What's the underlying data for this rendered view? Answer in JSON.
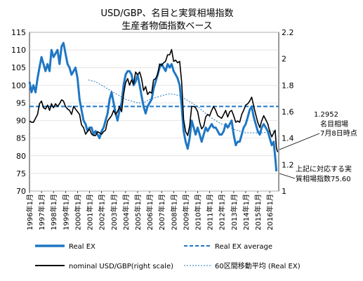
{
  "chart_data": {
    "type": "line",
    "title": "USD/GBP、名目と実質相場指数",
    "subtitle": "生産者物価指数ベース",
    "xlabel": "",
    "ylabel": "",
    "y2label": "",
    "ylim": [
      70,
      115
    ],
    "yticks": [
      "70",
      "75",
      "80",
      "85",
      "90",
      "95",
      "100",
      "105",
      "110",
      "115"
    ],
    "y2lim": [
      1.0,
      2.2
    ],
    "y2ticks": [
      "1",
      "1.2",
      "1.4",
      "1.6",
      "1.8",
      "2",
      "2.2"
    ],
    "xlim": [
      1996.0,
      2016.75
    ],
    "xtick_labels": [
      "1996年1月",
      "1997年1月",
      "1998年1月",
      "1999年1月",
      "2000年1月",
      "2001年1月",
      "2002年1月",
      "2003年1月",
      "2004年1月",
      "2005年1月",
      "2006年1月",
      "2007年1月",
      "2008年1月",
      "2009年1月",
      "2010年1月",
      "2011年1月",
      "2012年1月",
      "2013年1月",
      "2014年1月",
      "2015年1月",
      "2016年1月"
    ],
    "colors": {
      "real": "#1f77c4",
      "nominal": "#000000",
      "average": "#1f77c4",
      "moving": "#1f77c4"
    },
    "series": [
      {
        "name": "Real EX",
        "axis": "left",
        "points": [
          [
            1996.0,
            101
          ],
          [
            1996.17,
            98
          ],
          [
            1996.33,
            100
          ],
          [
            1996.5,
            98
          ],
          [
            1996.67,
            102
          ],
          [
            1996.83,
            105
          ],
          [
            1997.0,
            108
          ],
          [
            1997.17,
            106
          ],
          [
            1997.33,
            104
          ],
          [
            1997.5,
            106
          ],
          [
            1997.67,
            104
          ],
          [
            1997.83,
            110
          ],
          [
            1998.0,
            108
          ],
          [
            1998.17,
            109
          ],
          [
            1998.33,
            110
          ],
          [
            1998.5,
            106
          ],
          [
            1998.67,
            111
          ],
          [
            1998.83,
            112
          ],
          [
            1999.0,
            109
          ],
          [
            1999.17,
            106
          ],
          [
            1999.33,
            105
          ],
          [
            1999.5,
            103
          ],
          [
            1999.67,
            104
          ],
          [
            1999.83,
            105
          ],
          [
            2000.0,
            102
          ],
          [
            2000.17,
            96
          ],
          [
            2000.33,
            93
          ],
          [
            2000.5,
            90
          ],
          [
            2000.67,
            89
          ],
          [
            2000.83,
            87
          ],
          [
            2001.0,
            88
          ],
          [
            2001.17,
            88
          ],
          [
            2001.33,
            86
          ],
          [
            2001.5,
            87
          ],
          [
            2001.67,
            86
          ],
          [
            2001.83,
            85
          ],
          [
            2002.0,
            87
          ],
          [
            2002.17,
            88
          ],
          [
            2002.33,
            90
          ],
          [
            2002.5,
            92
          ],
          [
            2002.67,
            96
          ],
          [
            2002.83,
            98
          ],
          [
            2003.0,
            95
          ],
          [
            2003.17,
            92
          ],
          [
            2003.33,
            90
          ],
          [
            2003.5,
            93
          ],
          [
            2003.67,
            95
          ],
          [
            2003.83,
            100
          ],
          [
            2004.0,
            103
          ],
          [
            2004.17,
            104
          ],
          [
            2004.33,
            104
          ],
          [
            2004.5,
            103
          ],
          [
            2004.67,
            100
          ],
          [
            2004.83,
            101
          ],
          [
            2005.0,
            103
          ],
          [
            2005.17,
            100
          ],
          [
            2005.33,
            97
          ],
          [
            2005.5,
            94
          ],
          [
            2005.67,
            92
          ],
          [
            2005.83,
            94
          ],
          [
            2006.0,
            95
          ],
          [
            2006.17,
            96
          ],
          [
            2006.33,
            99
          ],
          [
            2006.5,
            101
          ],
          [
            2006.67,
            103
          ],
          [
            2006.83,
            105
          ],
          [
            2007.0,
            106
          ],
          [
            2007.17,
            105
          ],
          [
            2007.33,
            104
          ],
          [
            2007.5,
            106
          ],
          [
            2007.67,
            105
          ],
          [
            2007.83,
            106
          ],
          [
            2008.0,
            104
          ],
          [
            2008.17,
            103
          ],
          [
            2008.33,
            102
          ],
          [
            2008.5,
            100
          ],
          [
            2008.67,
            94
          ],
          [
            2008.83,
            87
          ],
          [
            2009.0,
            84
          ],
          [
            2009.17,
            82
          ],
          [
            2009.33,
            85
          ],
          [
            2009.5,
            90
          ],
          [
            2009.67,
            88
          ],
          [
            2009.83,
            86
          ],
          [
            2010.0,
            88
          ],
          [
            2010.17,
            86
          ],
          [
            2010.33,
            84
          ],
          [
            2010.5,
            86
          ],
          [
            2010.67,
            88
          ],
          [
            2010.83,
            87
          ],
          [
            2011.0,
            88
          ],
          [
            2011.17,
            89
          ],
          [
            2011.33,
            88
          ],
          [
            2011.5,
            88
          ],
          [
            2011.67,
            87
          ],
          [
            2011.83,
            86
          ],
          [
            2012.0,
            86
          ],
          [
            2012.17,
            87
          ],
          [
            2012.33,
            89
          ],
          [
            2012.5,
            88
          ],
          [
            2012.67,
            89
          ],
          [
            2012.83,
            90
          ],
          [
            2013.0,
            86
          ],
          [
            2013.17,
            83
          ],
          [
            2013.33,
            84
          ],
          [
            2013.5,
            84
          ],
          [
            2013.67,
            86
          ],
          [
            2013.83,
            88
          ],
          [
            2014.0,
            89
          ],
          [
            2014.17,
            91
          ],
          [
            2014.33,
            93
          ],
          [
            2014.5,
            94
          ],
          [
            2014.67,
            91
          ],
          [
            2014.83,
            89
          ],
          [
            2015.0,
            87
          ],
          [
            2015.17,
            86
          ],
          [
            2015.33,
            88
          ],
          [
            2015.5,
            89
          ],
          [
            2015.67,
            88
          ],
          [
            2015.83,
            87
          ],
          [
            2016.0,
            85
          ],
          [
            2016.17,
            83
          ],
          [
            2016.33,
            84
          ],
          [
            2016.5,
            78
          ],
          [
            2016.55,
            75.6
          ]
        ]
      },
      {
        "name": "Real EX average",
        "axis": "left",
        "constant": 94
      },
      {
        "name": "nominal USD/GBP(right scale)",
        "axis": "right",
        "points": [
          [
            1996.0,
            1.53
          ],
          [
            1996.17,
            1.52
          ],
          [
            1996.33,
            1.52
          ],
          [
            1996.5,
            1.55
          ],
          [
            1996.67,
            1.58
          ],
          [
            1996.83,
            1.66
          ],
          [
            1997.0,
            1.68
          ],
          [
            1997.17,
            1.63
          ],
          [
            1997.33,
            1.62
          ],
          [
            1997.5,
            1.65
          ],
          [
            1997.67,
            1.61
          ],
          [
            1997.83,
            1.66
          ],
          [
            1998.0,
            1.63
          ],
          [
            1998.17,
            1.66
          ],
          [
            1998.33,
            1.64
          ],
          [
            1998.5,
            1.66
          ],
          [
            1998.67,
            1.69
          ],
          [
            1998.83,
            1.68
          ],
          [
            1999.0,
            1.64
          ],
          [
            1999.17,
            1.62
          ],
          [
            1999.33,
            1.61
          ],
          [
            1999.5,
            1.58
          ],
          [
            1999.67,
            1.64
          ],
          [
            1999.83,
            1.62
          ],
          [
            2000.0,
            1.6
          ],
          [
            2000.17,
            1.58
          ],
          [
            2000.33,
            1.5
          ],
          [
            2000.5,
            1.48
          ],
          [
            2000.67,
            1.43
          ],
          [
            2000.83,
            1.45
          ],
          [
            2001.0,
            1.47
          ],
          [
            2001.17,
            1.43
          ],
          [
            2001.33,
            1.42
          ],
          [
            2001.5,
            1.42
          ],
          [
            2001.67,
            1.45
          ],
          [
            2001.83,
            1.44
          ],
          [
            2002.0,
            1.43
          ],
          [
            2002.17,
            1.45
          ],
          [
            2002.33,
            1.46
          ],
          [
            2002.5,
            1.53
          ],
          [
            2002.67,
            1.55
          ],
          [
            2002.83,
            1.57
          ],
          [
            2003.0,
            1.61
          ],
          [
            2003.17,
            1.58
          ],
          [
            2003.33,
            1.6
          ],
          [
            2003.5,
            1.64
          ],
          [
            2003.67,
            1.6
          ],
          [
            2003.83,
            1.73
          ],
          [
            2004.0,
            1.82
          ],
          [
            2004.17,
            1.85
          ],
          [
            2004.33,
            1.8
          ],
          [
            2004.5,
            1.84
          ],
          [
            2004.67,
            1.81
          ],
          [
            2004.83,
            1.9
          ],
          [
            2005.0,
            1.88
          ],
          [
            2005.17,
            1.9
          ],
          [
            2005.33,
            1.85
          ],
          [
            2005.5,
            1.76
          ],
          [
            2005.67,
            1.79
          ],
          [
            2005.83,
            1.73
          ],
          [
            2006.0,
            1.75
          ],
          [
            2006.17,
            1.74
          ],
          [
            2006.33,
            1.84
          ],
          [
            2006.5,
            1.85
          ],
          [
            2006.67,
            1.88
          ],
          [
            2006.83,
            1.96
          ],
          [
            2007.0,
            1.95
          ],
          [
            2007.17,
            1.97
          ],
          [
            2007.33,
            1.98
          ],
          [
            2007.5,
            2.03
          ],
          [
            2007.67,
            2.03
          ],
          [
            2007.83,
            2.07
          ],
          [
            2008.0,
            1.98
          ],
          [
            2008.17,
            1.99
          ],
          [
            2008.33,
            1.97
          ],
          [
            2008.5,
            1.98
          ],
          [
            2008.67,
            1.82
          ],
          [
            2008.83,
            1.54
          ],
          [
            2009.0,
            1.45
          ],
          [
            2009.17,
            1.42
          ],
          [
            2009.33,
            1.49
          ],
          [
            2009.5,
            1.64
          ],
          [
            2009.67,
            1.64
          ],
          [
            2009.83,
            1.63
          ],
          [
            2010.0,
            1.6
          ],
          [
            2010.17,
            1.52
          ],
          [
            2010.33,
            1.47
          ],
          [
            2010.5,
            1.49
          ],
          [
            2010.67,
            1.56
          ],
          [
            2010.83,
            1.58
          ],
          [
            2011.0,
            1.57
          ],
          [
            2011.17,
            1.61
          ],
          [
            2011.33,
            1.64
          ],
          [
            2011.5,
            1.61
          ],
          [
            2011.67,
            1.57
          ],
          [
            2011.83,
            1.56
          ],
          [
            2012.0,
            1.55
          ],
          [
            2012.17,
            1.58
          ],
          [
            2012.33,
            1.61
          ],
          [
            2012.5,
            1.56
          ],
          [
            2012.67,
            1.6
          ],
          [
            2012.83,
            1.61
          ],
          [
            2013.0,
            1.57
          ],
          [
            2013.17,
            1.52
          ],
          [
            2013.33,
            1.53
          ],
          [
            2013.5,
            1.52
          ],
          [
            2013.67,
            1.58
          ],
          [
            2013.83,
            1.61
          ],
          [
            2014.0,
            1.65
          ],
          [
            2014.17,
            1.66
          ],
          [
            2014.33,
            1.68
          ],
          [
            2014.5,
            1.71
          ],
          [
            2014.67,
            1.64
          ],
          [
            2014.83,
            1.58
          ],
          [
            2015.0,
            1.52
          ],
          [
            2015.17,
            1.48
          ],
          [
            2015.33,
            1.53
          ],
          [
            2015.5,
            1.57
          ],
          [
            2015.67,
            1.54
          ],
          [
            2015.83,
            1.51
          ],
          [
            2016.0,
            1.45
          ],
          [
            2016.17,
            1.41
          ],
          [
            2016.33,
            1.44
          ],
          [
            2016.45,
            1.46
          ],
          [
            2016.55,
            1.33
          ],
          [
            2016.65,
            1.2952
          ]
        ]
      },
      {
        "name": "60区間移動平均 (Real EX)",
        "axis": "left",
        "points": [
          [
            2000.9,
            101.5
          ],
          [
            2001.5,
            101
          ],
          [
            2002.0,
            100
          ],
          [
            2002.5,
            99
          ],
          [
            2003.0,
            98
          ],
          [
            2003.5,
            97
          ],
          [
            2004.0,
            96
          ],
          [
            2004.5,
            95.5
          ],
          [
            2005.0,
            95
          ],
          [
            2005.5,
            95
          ],
          [
            2006.0,
            96
          ],
          [
            2006.5,
            96.5
          ],
          [
            2007.0,
            97
          ],
          [
            2007.5,
            97.5
          ],
          [
            2008.0,
            97.5
          ],
          [
            2008.5,
            97
          ],
          [
            2009.0,
            96
          ],
          [
            2009.5,
            95
          ],
          [
            2010.0,
            94
          ],
          [
            2010.5,
            92.5
          ],
          [
            2011.0,
            91
          ],
          [
            2011.5,
            90
          ],
          [
            2012.0,
            89
          ],
          [
            2012.5,
            88.5
          ],
          [
            2013.0,
            87.5
          ],
          [
            2013.5,
            87
          ],
          [
            2014.0,
            86.5
          ],
          [
            2014.5,
            86.5
          ],
          [
            2015.0,
            86.5
          ],
          [
            2015.5,
            86.5
          ],
          [
            2016.0,
            87
          ],
          [
            2016.5,
            87
          ]
        ]
      }
    ],
    "annotations": {
      "nominal_value": "1.2952",
      "nominal_label_line1": "名目相場",
      "nominal_label_line2": "7月8日時点",
      "real_label_line1": "上記に対応する実",
      "real_label_line2": "質相場指数75.60"
    }
  }
}
